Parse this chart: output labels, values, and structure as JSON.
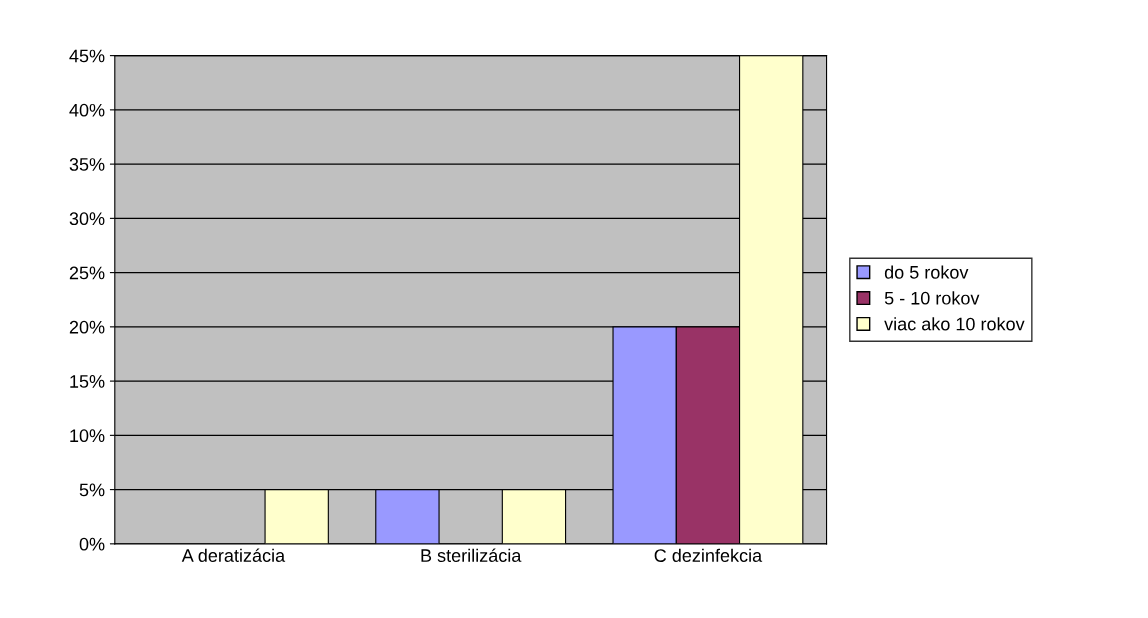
{
  "chart_data": {
    "type": "bar",
    "categories": [
      "A deratizácia",
      "B sterilizácia",
      "C dezinfekcia"
    ],
    "series": [
      {
        "name": "do 5 rokov",
        "color": "#9999ff",
        "values": [
          0,
          5,
          20
        ]
      },
      {
        "name": "5 - 10 rokov",
        "color": "#993366",
        "values": [
          0,
          0,
          20
        ]
      },
      {
        "name": "viac ako 10 rokov",
        "color": "#ffffcc",
        "values": [
          5,
          5,
          45
        ]
      }
    ],
    "ylim": [
      0,
      45
    ],
    "yticks": [
      {
        "value": 0,
        "label": "0%"
      },
      {
        "value": 5,
        "label": "5%"
      },
      {
        "value": 10,
        "label": "10%"
      },
      {
        "value": 15,
        "label": "15%"
      },
      {
        "value": 20,
        "label": "20%"
      },
      {
        "value": 25,
        "label": "25%"
      },
      {
        "value": 30,
        "label": "30%"
      },
      {
        "value": 35,
        "label": "35%"
      },
      {
        "value": 40,
        "label": "40%"
      },
      {
        "value": 45,
        "label": "45%"
      }
    ],
    "grid": "y",
    "legend": "right"
  }
}
